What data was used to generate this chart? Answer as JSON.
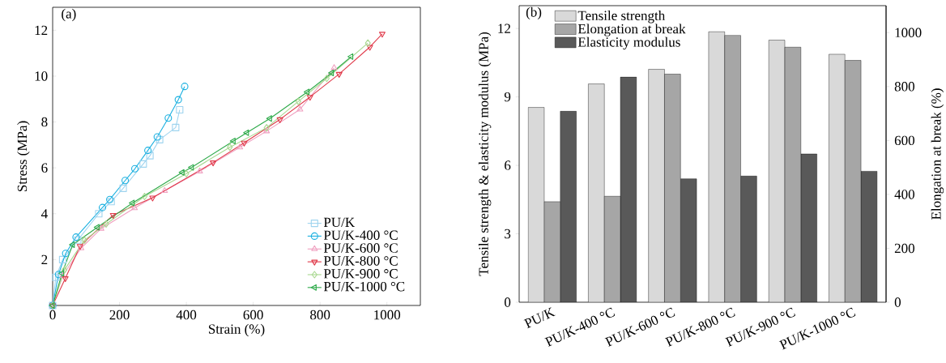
{
  "chart_data": [
    {
      "type": "line",
      "title": "(a)",
      "xlabel": "Strain (%)",
      "ylabel": "Stress (MPa)",
      "xlim": [
        0,
        1100
      ],
      "ylim": [
        0,
        13
      ],
      "xticks": [
        0,
        200,
        400,
        600,
        800,
        1000
      ],
      "yticks": [
        2,
        4,
        6,
        8,
        10,
        12
      ],
      "legend": "bottom right",
      "line_style": "solid",
      "series": [
        {
          "name": "PU/K",
          "color": "#9fd4ef",
          "marker": "square",
          "x": [
            0,
            9.5,
            30,
            75,
            138,
            175,
            211,
            271,
            291,
            320,
            368,
            380
          ],
          "values": [
            0,
            1.23,
            2.0,
            2.85,
            4.0,
            4.53,
            5.11,
            6.17,
            6.53,
            7.23,
            7.76,
            8.53
          ]
        },
        {
          "name": "PU/K-400 °C",
          "color": "#1ab0e0",
          "marker": "circle",
          "x": [
            0,
            17.6,
            39,
            70,
            149,
            171,
            217,
            246,
            285,
            313,
            346,
            376,
            395
          ],
          "values": [
            0,
            1.35,
            2.27,
            2.98,
            4.27,
            4.62,
            5.45,
            5.96,
            6.76,
            7.35,
            8.17,
            8.97,
            9.55
          ]
        },
        {
          "name": "PU/K-600 °C",
          "color": "#f0a0c0",
          "marker": "triangle",
          "x": [
            0,
            30,
            85,
            145,
            245,
            335,
            440,
            560,
            640,
            740,
            842
          ],
          "values": [
            0,
            1.3,
            2.5,
            3.35,
            4.25,
            5.0,
            5.85,
            6.9,
            7.6,
            8.55,
            10.36
          ]
        },
        {
          "name": "PU/K-800 °C",
          "color": "#e03a4a",
          "marker": "triangle-down",
          "x": [
            0,
            38,
            82,
            181,
            299,
            480,
            573,
            680,
            770,
            857,
            949,
            986
          ],
          "values": [
            0,
            1.18,
            2.59,
            3.94,
            4.7,
            6.23,
            7.09,
            8.11,
            9.09,
            10.09,
            11.27,
            11.84
          ]
        },
        {
          "name": "PU/K-900 °C",
          "color": "#a8d890",
          "marker": "diamond",
          "x": [
            0,
            35,
            95,
            160,
            275,
            400,
            530,
            640,
            735,
            820,
            943
          ],
          "values": [
            0,
            1.55,
            2.85,
            3.55,
            4.75,
            5.75,
            6.9,
            7.75,
            8.9,
            9.9,
            11.44
          ]
        },
        {
          "name": "PU/K-1000 °C",
          "color": "#2eaa4a",
          "marker": "triangle-left",
          "x": [
            0,
            28,
            60,
            134,
            239,
            388,
            416,
            541,
            581,
            650,
            762,
            835,
            893
          ],
          "values": [
            0,
            1.4,
            2.65,
            3.41,
            4.47,
            5.8,
            6.02,
            7.17,
            7.53,
            8.15,
            9.31,
            10.14,
            10.85
          ]
        }
      ]
    },
    {
      "type": "bar",
      "title": "(b)",
      "ylabel": "Tensile strength & elasticity modulus (MPa)",
      "y2label": "Elongation at break (%)",
      "categories": [
        "PU/K",
        "PU/K-400 °C",
        "PU/K-600 °C",
        "PU/K-800 °C",
        "PU/K-900 °C",
        "PU/K-1000 °C"
      ],
      "ylim": [
        0,
        13
      ],
      "yticks": [
        0,
        3,
        6,
        9,
        12
      ],
      "y2lim": [
        0,
        1100
      ],
      "y2ticks": [
        0,
        200,
        400,
        600,
        800,
        1000
      ],
      "legend": "top left",
      "series": [
        {
          "name": "Tensile strength",
          "color": "#d9d9d9",
          "values": [
            8.54,
            9.57,
            10.21,
            11.86,
            11.49,
            10.87
          ]
        },
        {
          "name": "Elongation at break",
          "color": "#a6a6a6",
          "axis": "y2",
          "values": [
            373,
            393,
            846,
            990,
            946,
            897
          ]
        },
        {
          "name": "Elasticity modulus",
          "color": "#595959",
          "values": [
            8.37,
            9.87,
            5.41,
            5.53,
            6.5,
            5.74
          ]
        }
      ]
    }
  ]
}
